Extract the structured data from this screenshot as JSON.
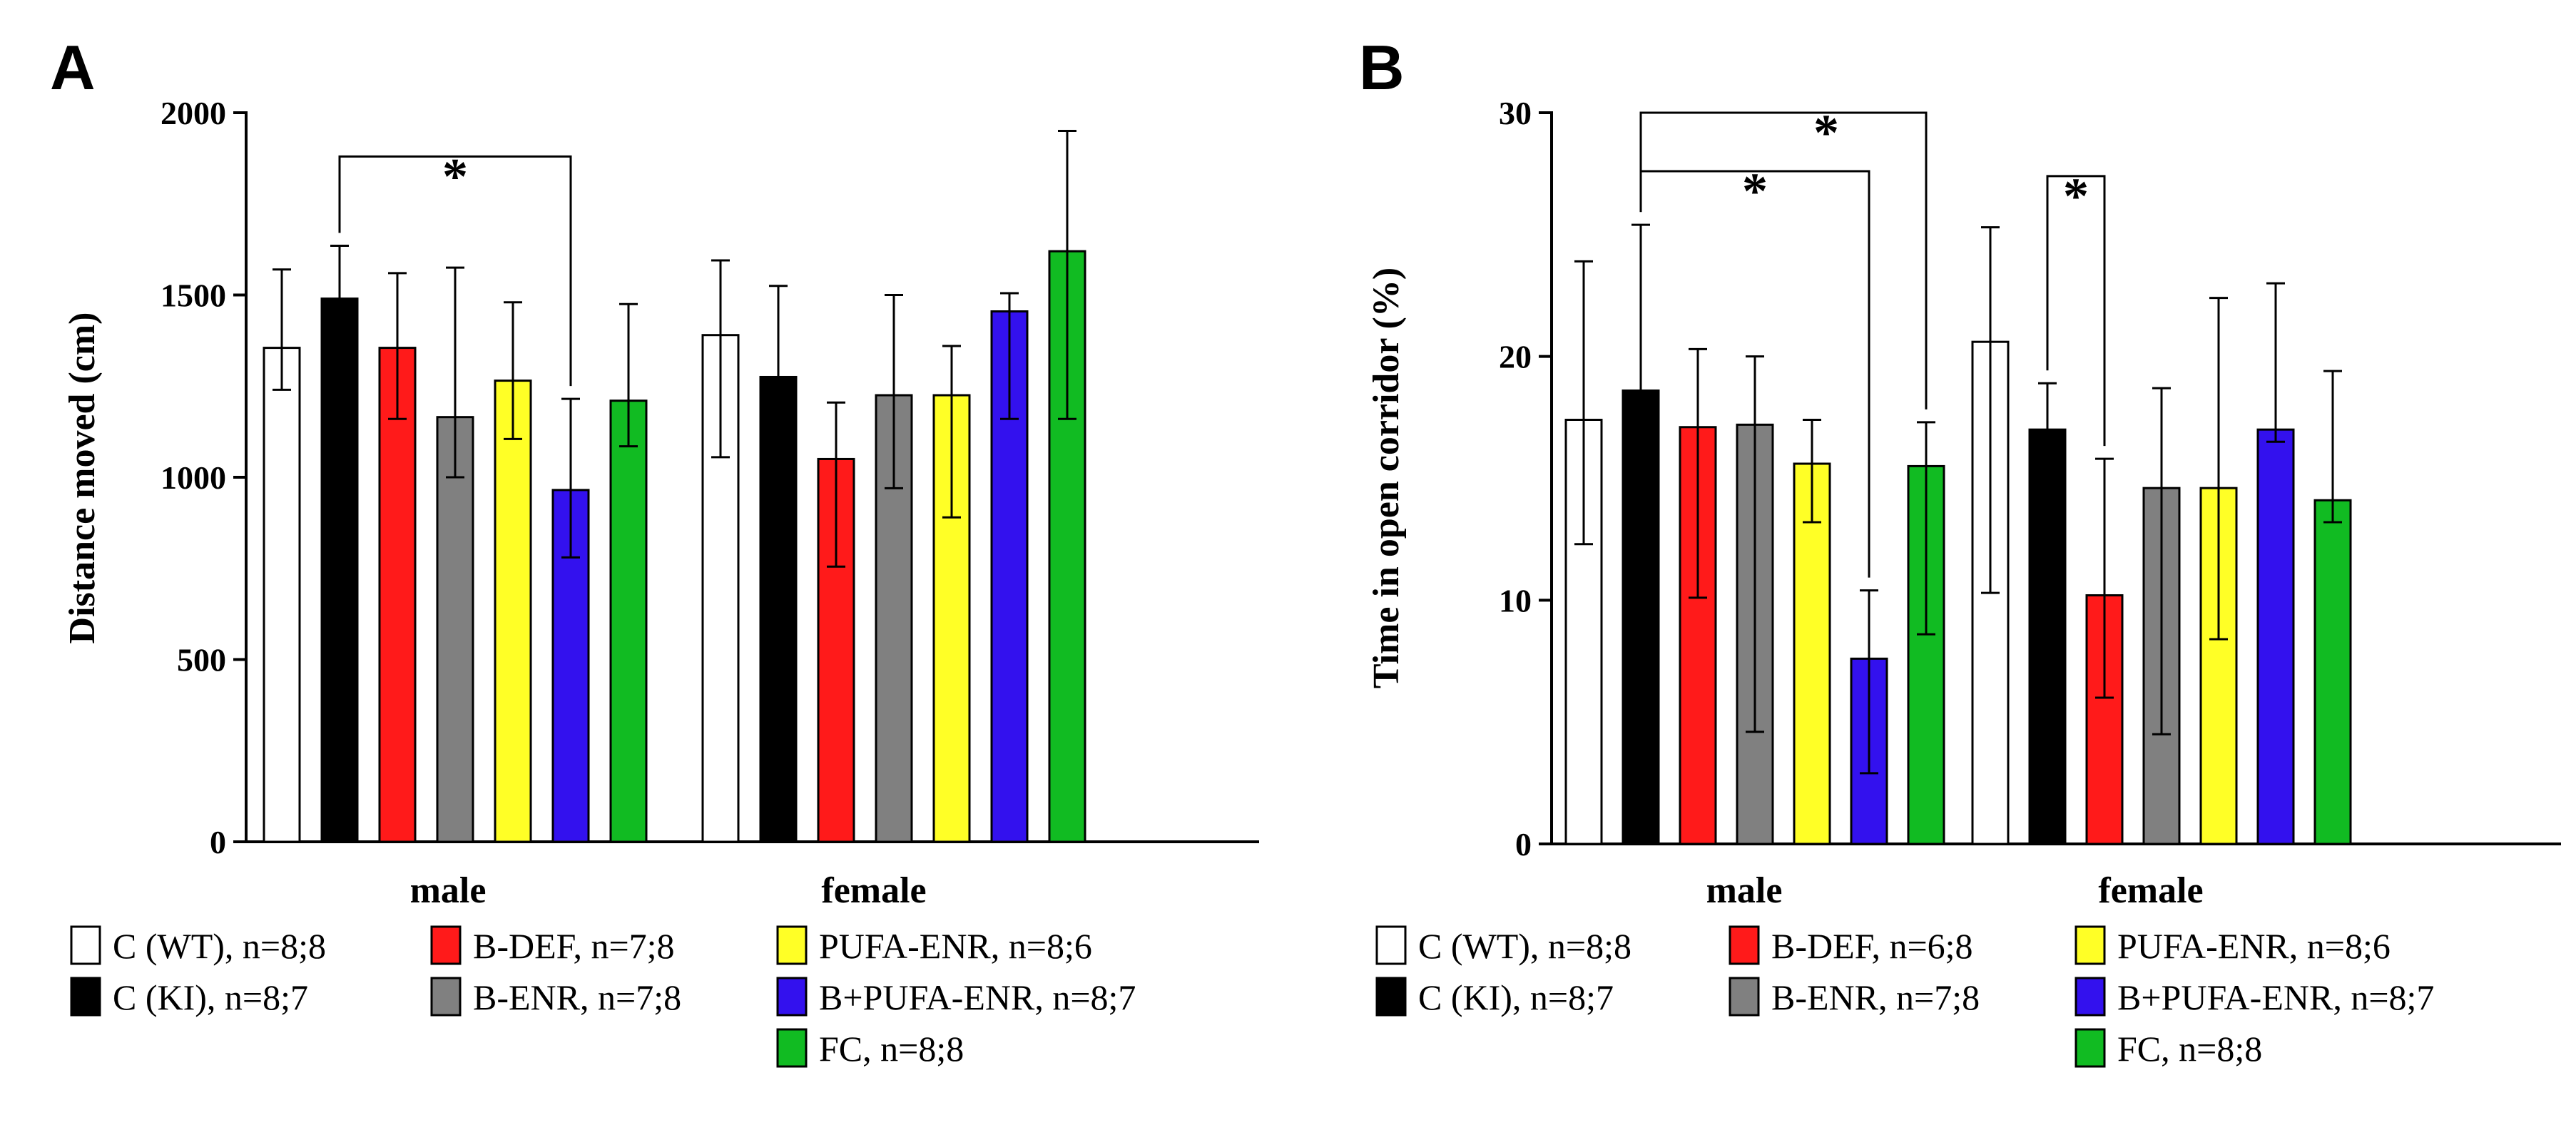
{
  "chart_data": [
    {
      "type": "bar",
      "panel": "A",
      "title": "",
      "xlabel": "",
      "ylabel": "Distance moved (cm)",
      "ylim": [
        0,
        2000
      ],
      "yticks": [
        "0",
        "500",
        "1000",
        "1500",
        "2000"
      ],
      "categories": [
        "male",
        "female"
      ],
      "series": [
        {
          "name": "C (WT), n=8;8",
          "color": "#ffffff",
          "values": [
            1355,
            1390
          ],
          "errors": [
            [
              1240,
              1570
            ],
            [
              1055,
              1595
            ]
          ]
        },
        {
          "name": "C (KI), n=8;7",
          "color": "#000000",
          "values": [
            1490,
            1275
          ],
          "errors": [
            [
              1335,
              1635
            ],
            [
              1020,
              1525
            ]
          ]
        },
        {
          "name": "B-DEF, n=7;8",
          "color": "#ff1a1a",
          "values": [
            1355,
            1050
          ],
          "errors": [
            [
              1160,
              1560
            ],
            [
              755,
              1205
            ]
          ]
        },
        {
          "name": "B-ENR, n=7;8",
          "color": "#808080",
          "values": [
            1165,
            1225
          ],
          "errors": [
            [
              1000,
              1575
            ],
            [
              970,
              1500
            ]
          ]
        },
        {
          "name": "PUFA-ENR, n=8;6",
          "color": "#ffff26",
          "values": [
            1265,
            1225
          ],
          "errors": [
            [
              1105,
              1480
            ],
            [
              890,
              1360
            ]
          ]
        },
        {
          "name": "B+PUFA-ENR, n=8;7",
          "color": "#3311ee",
          "values": [
            965,
            1455
          ],
          "errors": [
            [
              780,
              1215
            ],
            [
              1160,
              1505
            ]
          ]
        },
        {
          "name": "FC, n=8;8",
          "color": "#11bb22",
          "values": [
            1210,
            1620
          ],
          "errors": [
            [
              1085,
              1475
            ],
            [
              1160,
              1950
            ]
          ]
        }
      ],
      "annotations": [
        {
          "text": "*",
          "from_series": 1,
          "to_series": 5,
          "group": "male",
          "y": 1880
        }
      ]
    },
    {
      "type": "bar",
      "panel": "B",
      "title": "",
      "xlabel": "",
      "ylabel": "Time in open corridor (%)",
      "ylim": [
        0,
        30
      ],
      "yticks": [
        "0",
        "10",
        "20",
        "30"
      ],
      "categories": [
        "male",
        "female"
      ],
      "series": [
        {
          "name": "C (WT), n=8;8",
          "color": "#ffffff",
          "values": [
            17.4,
            20.6
          ],
          "errors": [
            [
              12.3,
              23.9
            ],
            [
              10.3,
              25.3
            ]
          ]
        },
        {
          "name": "C (KI), n=8;7",
          "color": "#000000",
          "values": [
            18.6,
            17.0
          ],
          "errors": [
            [
              11.9,
              25.4
            ],
            [
              15.1,
              18.9
            ]
          ]
        },
        {
          "name": "B-DEF, n=6;8",
          "color": "#ff1a1a",
          "values": [
            17.1,
            10.2
          ],
          "errors": [
            [
              10.1,
              20.3
            ],
            [
              6.0,
              15.8
            ]
          ]
        },
        {
          "name": "B-ENR, n=7;8",
          "color": "#808080",
          "values": [
            17.2,
            14.6
          ],
          "errors": [
            [
              4.6,
              20.0
            ],
            [
              4.5,
              18.7
            ]
          ]
        },
        {
          "name": "PUFA-ENR, n=8;6",
          "color": "#ffff26",
          "values": [
            15.6,
            14.6
          ],
          "errors": [
            [
              13.2,
              17.4
            ],
            [
              8.4,
              22.4
            ]
          ]
        },
        {
          "name": "B+PUFA-ENR, n=8;7",
          "color": "#3311ee",
          "values": [
            7.6,
            17.0
          ],
          "errors": [
            [
              2.9,
              10.4
            ],
            [
              16.5,
              23.0
            ]
          ]
        },
        {
          "name": "FC, n=8;8",
          "color": "#11bb22",
          "values": [
            15.5,
            14.1
          ],
          "errors": [
            [
              8.6,
              17.3
            ],
            [
              13.2,
              19.4
            ]
          ]
        }
      ],
      "annotations": [
        {
          "text": "*",
          "from_series": 1,
          "to_series": 6,
          "group": "male",
          "y": 30.0
        },
        {
          "text": "*",
          "from_series": 1,
          "to_series": 5,
          "group": "male",
          "y": 27.6
        },
        {
          "text": "*",
          "from_series": 1,
          "to_series": 2,
          "group": "female",
          "y": 27.4
        }
      ]
    }
  ]
}
